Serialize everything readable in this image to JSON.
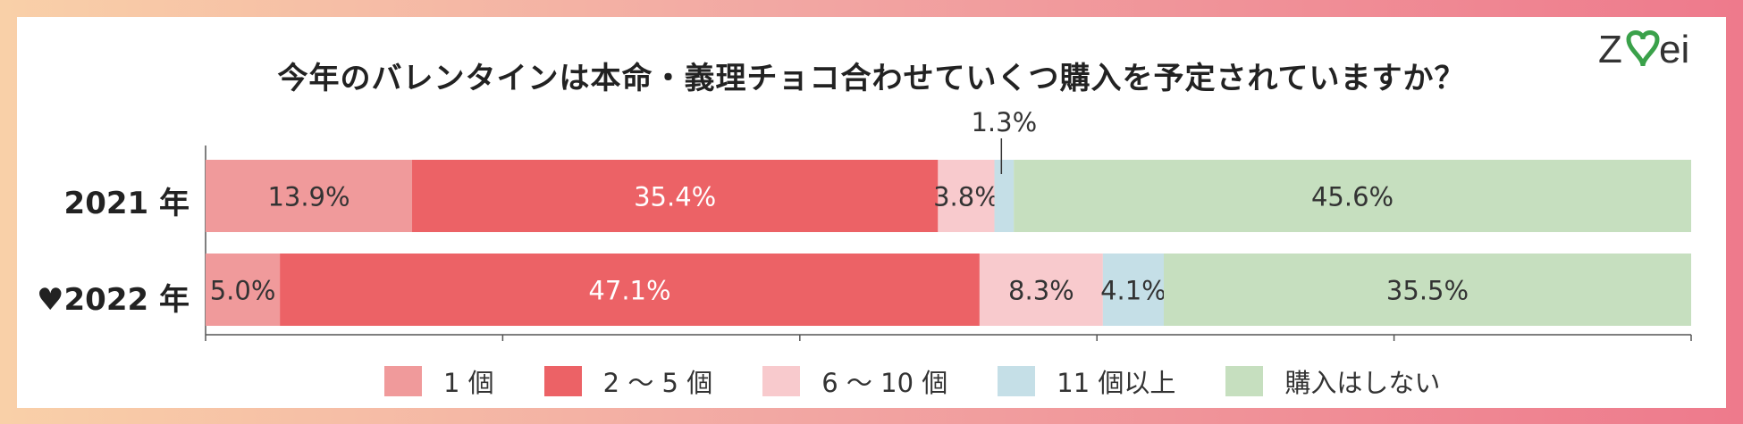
{
  "chart_data": {
    "type": "bar",
    "orientation": "horizontal",
    "stacked": true,
    "title": "今年のバレンタインは本命・義理チョコ合わせていくつ購入を予定されていますか？",
    "categories": [
      "2021 年",
      "♥2022 年"
    ],
    "series": [
      {
        "name": "1 個",
        "color": "#f09a9b",
        "values": [
          13.9,
          5.0
        ],
        "labels": [
          "13.9%",
          "5.0%"
        ]
      },
      {
        "name": "2 〜 5 個",
        "color": "#ec6266",
        "values": [
          35.4,
          47.1
        ],
        "labels": [
          "35.4%",
          "47.1%"
        ]
      },
      {
        "name": "6 〜 10 個",
        "color": "#f8cacd",
        "values": [
          3.8,
          8.3
        ],
        "labels": [
          "3.8%",
          "8.3%"
        ]
      },
      {
        "name": "11 個以上",
        "color": "#c5dfe7",
        "values": [
          1.3,
          4.1
        ],
        "labels": [
          "1.3%",
          "4.1%"
        ]
      },
      {
        "name": "購入はしない",
        "color": "#c6dfbf",
        "values": [
          45.6,
          35.5
        ],
        "labels": [
          "45.6%",
          "35.5%"
        ]
      }
    ],
    "xlim": [
      0,
      100
    ],
    "legend": "bottom",
    "grid": false
  },
  "logo": {
    "text": "ZWEI",
    "colors": [
      "#333333",
      "#3aa14a"
    ]
  }
}
